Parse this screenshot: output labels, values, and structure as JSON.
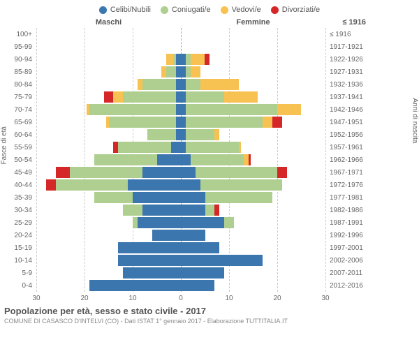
{
  "legend": [
    {
      "label": "Celibi/Nubili",
      "color": "#3b76af"
    },
    {
      "label": "Coniugati/e",
      "color": "#aecf8f"
    },
    {
      "label": "Vedovi/e",
      "color": "#f8c253"
    },
    {
      "label": "Divorziati/e",
      "color": "#d62728"
    }
  ],
  "headers": {
    "left": "Maschi",
    "right": "Femmine",
    "right_first": "≤ 1916"
  },
  "axis_labels": {
    "left": "Fasce di età",
    "right": "Anni di nascita"
  },
  "x_max": 30,
  "x_ticks": [
    30,
    20,
    10,
    0,
    10,
    20,
    30
  ],
  "colors": {
    "celibe": "#3b76af",
    "coniugato": "#aecf8f",
    "vedovo": "#f8c253",
    "divorziato": "#d62728",
    "grid": "#cccccc",
    "grid_center": "#aaaaaa",
    "bg": "#ffffff"
  },
  "rows": [
    {
      "age": "100+",
      "birth": "≤ 1916",
      "m": {
        "cel": 0,
        "con": 0,
        "ved": 0,
        "div": 0
      },
      "f": {
        "cel": 0,
        "con": 0,
        "ved": 0,
        "div": 0
      }
    },
    {
      "age": "95-99",
      "birth": "1917-1921",
      "m": {
        "cel": 0,
        "con": 0,
        "ved": 0,
        "div": 0
      },
      "f": {
        "cel": 0,
        "con": 0,
        "ved": 0,
        "div": 0
      }
    },
    {
      "age": "90-94",
      "birth": "1922-1926",
      "m": {
        "cel": 1,
        "con": 0.5,
        "ved": 1.5,
        "div": 0
      },
      "f": {
        "cel": 1,
        "con": 1,
        "ved": 3,
        "div": 1
      }
    },
    {
      "age": "85-89",
      "birth": "1927-1931",
      "m": {
        "cel": 1,
        "con": 2,
        "ved": 1,
        "div": 0
      },
      "f": {
        "cel": 1,
        "con": 1,
        "ved": 2,
        "div": 0
      }
    },
    {
      "age": "80-84",
      "birth": "1932-1936",
      "m": {
        "cel": 1,
        "con": 7,
        "ved": 1,
        "div": 0
      },
      "f": {
        "cel": 1,
        "con": 3,
        "ved": 8,
        "div": 0
      }
    },
    {
      "age": "75-79",
      "birth": "1937-1941",
      "m": {
        "cel": 1,
        "con": 11,
        "ved": 2,
        "div": 2
      },
      "f": {
        "cel": 1,
        "con": 8,
        "ved": 7,
        "div": 0
      }
    },
    {
      "age": "70-74",
      "birth": "1942-1946",
      "m": {
        "cel": 1,
        "con": 18,
        "ved": 0.5,
        "div": 0
      },
      "f": {
        "cel": 1,
        "con": 19,
        "ved": 5,
        "div": 0
      }
    },
    {
      "age": "65-69",
      "birth": "1947-1951",
      "m": {
        "cel": 1,
        "con": 14,
        "ved": 0.5,
        "div": 0
      },
      "f": {
        "cel": 1,
        "con": 16,
        "ved": 2,
        "div": 2
      }
    },
    {
      "age": "60-64",
      "birth": "1952-1956",
      "m": {
        "cel": 1,
        "con": 6,
        "ved": 0,
        "div": 0
      },
      "f": {
        "cel": 1,
        "con": 6,
        "ved": 1,
        "div": 0
      }
    },
    {
      "age": "55-59",
      "birth": "1957-1961",
      "m": {
        "cel": 2,
        "con": 11,
        "ved": 0,
        "div": 1
      },
      "f": {
        "cel": 1,
        "con": 11,
        "ved": 0.5,
        "div": 0
      }
    },
    {
      "age": "50-54",
      "birth": "1962-1966",
      "m": {
        "cel": 5,
        "con": 13,
        "ved": 0,
        "div": 0
      },
      "f": {
        "cel": 2,
        "con": 11,
        "ved": 1,
        "div": 0.5
      }
    },
    {
      "age": "45-49",
      "birth": "1967-1971",
      "m": {
        "cel": 8,
        "con": 15,
        "ved": 0,
        "div": 3
      },
      "f": {
        "cel": 3,
        "con": 17,
        "ved": 0,
        "div": 2
      }
    },
    {
      "age": "40-44",
      "birth": "1972-1976",
      "m": {
        "cel": 11,
        "con": 15,
        "ved": 0,
        "div": 2
      },
      "f": {
        "cel": 4,
        "con": 17,
        "ved": 0,
        "div": 0
      }
    },
    {
      "age": "35-39",
      "birth": "1977-1981",
      "m": {
        "cel": 10,
        "con": 8,
        "ved": 0,
        "div": 0
      },
      "f": {
        "cel": 5,
        "con": 14,
        "ved": 0,
        "div": 0
      }
    },
    {
      "age": "30-34",
      "birth": "1982-1986",
      "m": {
        "cel": 8,
        "con": 4,
        "ved": 0,
        "div": 0
      },
      "f": {
        "cel": 5,
        "con": 2,
        "ved": 0,
        "div": 1
      }
    },
    {
      "age": "25-29",
      "birth": "1987-1991",
      "m": {
        "cel": 9,
        "con": 1,
        "ved": 0,
        "div": 0
      },
      "f": {
        "cel": 9,
        "con": 2,
        "ved": 0,
        "div": 0
      }
    },
    {
      "age": "20-24",
      "birth": "1992-1996",
      "m": {
        "cel": 6,
        "con": 0,
        "ved": 0,
        "div": 0
      },
      "f": {
        "cel": 5,
        "con": 0,
        "ved": 0,
        "div": 0
      }
    },
    {
      "age": "15-19",
      "birth": "1997-2001",
      "m": {
        "cel": 13,
        "con": 0,
        "ved": 0,
        "div": 0
      },
      "f": {
        "cel": 8,
        "con": 0,
        "ved": 0,
        "div": 0
      }
    },
    {
      "age": "10-14",
      "birth": "2002-2006",
      "m": {
        "cel": 13,
        "con": 0,
        "ved": 0,
        "div": 0
      },
      "f": {
        "cel": 17,
        "con": 0,
        "ved": 0,
        "div": 0
      }
    },
    {
      "age": "5-9",
      "birth": "2007-2011",
      "m": {
        "cel": 12,
        "con": 0,
        "ved": 0,
        "div": 0
      },
      "f": {
        "cel": 9,
        "con": 0,
        "ved": 0,
        "div": 0
      }
    },
    {
      "age": "0-4",
      "birth": "2012-2016",
      "m": {
        "cel": 19,
        "con": 0,
        "ved": 0,
        "div": 0
      },
      "f": {
        "cel": 7,
        "con": 0,
        "ved": 0,
        "div": 0
      }
    }
  ],
  "title": "Popolazione per età, sesso e stato civile - 2017",
  "subtitle": "COMUNE DI CASASCO D'INTELVI (CO) - Dati ISTAT 1° gennaio 2017 - Elaborazione TUTTITALIA.IT"
}
